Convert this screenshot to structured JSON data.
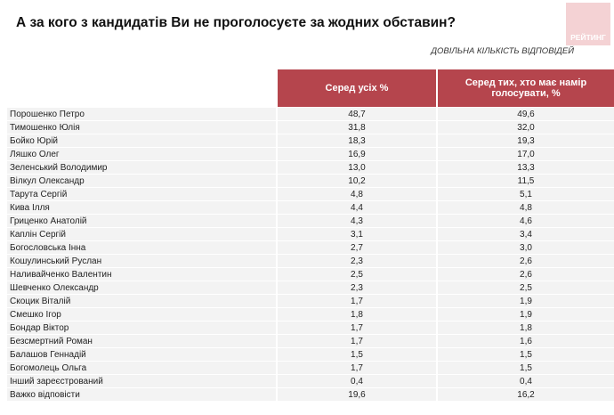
{
  "title": "А за кого з кандидатів Ви не проголосуєте за жодних обставин?",
  "subtitle": "ДОВІЛЬНА КІЛЬКІСТЬ ВІДПОВІДЕЙ",
  "logo": "РЕЙТИНГ",
  "table": {
    "headers": [
      "",
      "Серед усіх %",
      "Серед тих, хто має намір голосувати, %"
    ],
    "rows": [
      [
        "Порошенко Петро",
        "48,7",
        "49,6"
      ],
      [
        "Тимошенко Юлія",
        "31,8",
        "32,0"
      ],
      [
        "Бойко Юрій",
        "18,3",
        "19,3"
      ],
      [
        "Ляшко Олег",
        "16,9",
        "17,0"
      ],
      [
        "Зеленський Володимир",
        "13,0",
        "13,3"
      ],
      [
        "Вілкул Олександр",
        "10,2",
        "11,5"
      ],
      [
        "Тарута Сергій",
        "4,8",
        "5,1"
      ],
      [
        "Кива Ілля",
        "4,4",
        "4,8"
      ],
      [
        "Гриценко Анатолій",
        "4,3",
        "4,6"
      ],
      [
        "Каплін Сергій",
        "3,1",
        "3,4"
      ],
      [
        "Богословська Інна",
        "2,7",
        "3,0"
      ],
      [
        "Кошулинський Руслан",
        "2,3",
        "2,6"
      ],
      [
        "Наливайченко Валентин",
        "2,5",
        "2,6"
      ],
      [
        "Шевченко Олександр",
        "2,3",
        "2,5"
      ],
      [
        "Скоцик Віталій",
        "1,7",
        "1,9"
      ],
      [
        "Смешко Ігор",
        "1,8",
        "1,9"
      ],
      [
        "Бондар Віктор",
        "1,7",
        "1,8"
      ],
      [
        "Безсмертний Роман",
        "1,7",
        "1,6"
      ],
      [
        "Балашов Геннадій",
        "1,5",
        "1,5"
      ],
      [
        "Богомолець Ольга",
        "1,7",
        "1,5"
      ],
      [
        "Інший зареєстрований",
        "0,4",
        "0,4"
      ],
      [
        "Важко відповісти",
        "19,6",
        "16,2"
      ]
    ]
  },
  "colors": {
    "header": "#b5454d",
    "row": "#f3f3f3",
    "logo": "#f4d2d4"
  }
}
